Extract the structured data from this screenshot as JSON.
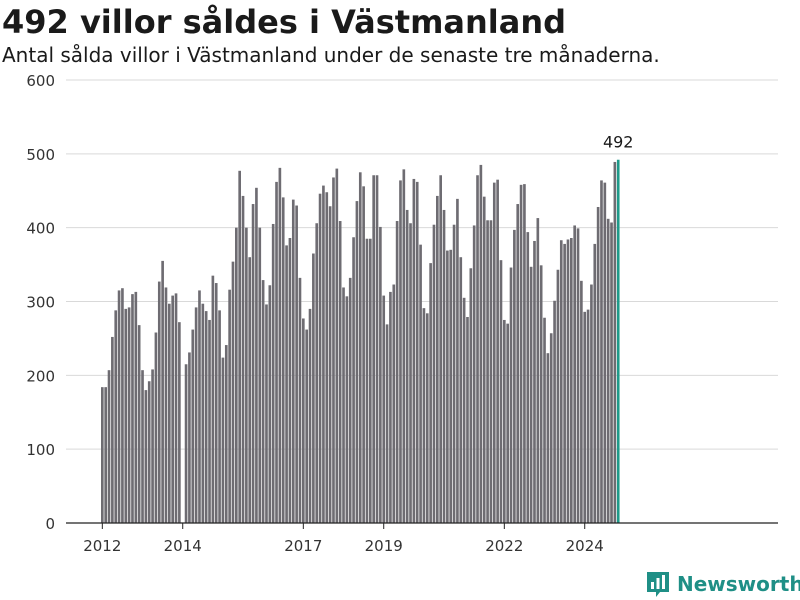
{
  "header": {
    "title": "492 villor såldes i Västmanland",
    "subtitle": "Antal sålda villor i Västmanland under de senaste tre månaderna."
  },
  "brand": {
    "name": "Newsworthy",
    "color": "#1f8f86",
    "icon": "bar-chart-logo-icon"
  },
  "colors": {
    "bar": "#6e6c72",
    "highlight": "#1f9a8a",
    "grid": "#d9d9d9",
    "axis": "#333333"
  },
  "chart_data": {
    "type": "bar",
    "title": "",
    "xlabel": "",
    "ylabel": "",
    "ylim": [
      0,
      600
    ],
    "yticks": [
      0,
      100,
      200,
      300,
      400,
      500,
      600
    ],
    "xticks": [
      {
        "label": "2012",
        "year": 2012
      },
      {
        "label": "2014",
        "year": 2014
      },
      {
        "label": "2017",
        "year": 2017
      },
      {
        "label": "2019",
        "year": 2019
      },
      {
        "label": "2022",
        "year": 2022
      },
      {
        "label": "2024",
        "year": 2024
      }
    ],
    "grid": true,
    "start": "2012-01",
    "end": "2024-09",
    "frequency": "monthly",
    "values": [
      184,
      184,
      207,
      252,
      288,
      315,
      318,
      290,
      292,
      310,
      313,
      268,
      207,
      180,
      192,
      208,
      258,
      327,
      355,
      319,
      297,
      308,
      311,
      272,
      null,
      215,
      231,
      262,
      292,
      315,
      297,
      287,
      275,
      335,
      325,
      288,
      224,
      241,
      316,
      354,
      400,
      477,
      443,
      400,
      360,
      432,
      454,
      400,
      329,
      296,
      322,
      405,
      462,
      481,
      441,
      376,
      386,
      438,
      430,
      332,
      277,
      262,
      290,
      365,
      406,
      446,
      457,
      448,
      429,
      468,
      480,
      409,
      319,
      307,
      332,
      387,
      436,
      475,
      456,
      385,
      385,
      471,
      471,
      401,
      308,
      269,
      313,
      323,
      409,
      464,
      479,
      424,
      406,
      466,
      462,
      377,
      291,
      284,
      352,
      404,
      443,
      471,
      424,
      369,
      370,
      404,
      439,
      360,
      305,
      279,
      345,
      403,
      471,
      485,
      442,
      410,
      410,
      461,
      465,
      356,
      275,
      270,
      346,
      397,
      432,
      458,
      459,
      394,
      347,
      382,
      413,
      349,
      278,
      230,
      257,
      301,
      343,
      383,
      378,
      384,
      386,
      403,
      399,
      328,
      286,
      289,
      323,
      378,
      428,
      464,
      461,
      412,
      407,
      489,
      492
    ],
    "highlight": {
      "label": "492",
      "value": 492,
      "index": "last"
    }
  }
}
